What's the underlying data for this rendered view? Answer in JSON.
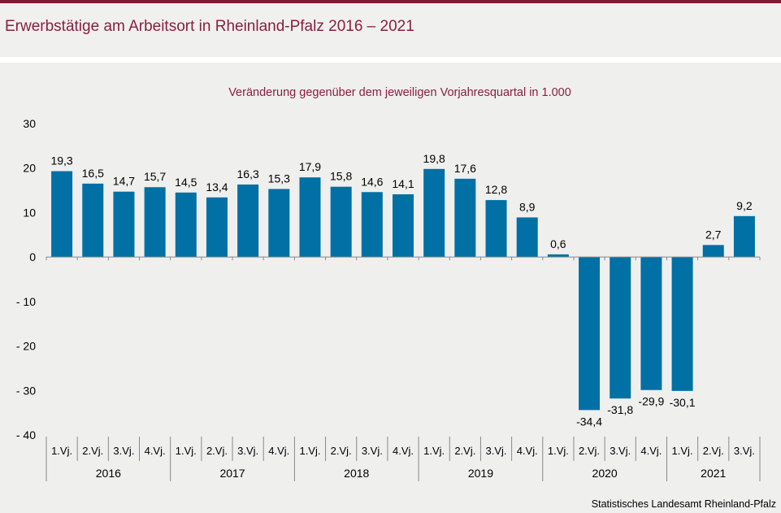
{
  "header": {
    "title": "Erwerbstätige am Arbeitsort in Rheinland-Pfalz 2016 – 2021"
  },
  "colors": {
    "accent": "#7b1c34",
    "bar": "#0070a5",
    "title": "#8a1f3c"
  },
  "chart_data": {
    "type": "bar",
    "subtitle": "Veränderung  gegenüber  dem jeweiligen  Vorjahresquartal   in 1.000",
    "ylim": [
      -40,
      30
    ],
    "yticks": [
      {
        "value": 30,
        "label": "30"
      },
      {
        "value": 20,
        "label": "20"
      },
      {
        "value": 10,
        "label": "10"
      },
      {
        "value": 0,
        "label": "0"
      },
      {
        "value": -10,
        "label": "- 10"
      },
      {
        "value": -20,
        "label": "- 20"
      },
      {
        "value": -30,
        "label": "- 30"
      },
      {
        "value": -40,
        "label": "- 40"
      }
    ],
    "categories": [
      "1.Vj.",
      "2.Vj.",
      "3.Vj.",
      "4.Vj.",
      "1.Vj.",
      "2.Vj.",
      "3.Vj.",
      "4.Vj.",
      "1.Vj.",
      "2.Vj.",
      "3.Vj.",
      "4.Vj.",
      "1.Vj.",
      "2.Vj.",
      "3.Vj.",
      "4.Vj.",
      "1.Vj.",
      "2.Vj.",
      "3.Vj.",
      "4.Vj.",
      "1.Vj.",
      "2.Vj.",
      "3.Vj."
    ],
    "values": [
      19.3,
      16.5,
      14.7,
      15.7,
      14.5,
      13.4,
      16.3,
      15.3,
      17.9,
      15.8,
      14.6,
      14.1,
      19.8,
      17.6,
      12.8,
      8.9,
      0.6,
      -34.4,
      -31.8,
      -29.9,
      -30.1,
      2.7,
      9.2
    ],
    "value_labels": [
      "19,3",
      "16,5",
      "14,7",
      "15,7",
      "14,5",
      "13,4",
      "16,3",
      "15,3",
      "17,9",
      "15,8",
      "14,6",
      "14,1",
      "19,8",
      "17,6",
      "12,8",
      "8,9",
      "0,6",
      "-34,4",
      "-31,8",
      "-29,9",
      "-30,1",
      "2,7",
      "9,2"
    ],
    "groups": [
      {
        "label": "2016",
        "count": 4
      },
      {
        "label": "2017",
        "count": 4
      },
      {
        "label": "2018",
        "count": 4
      },
      {
        "label": "2019",
        "count": 4
      },
      {
        "label": "2020",
        "count": 4
      },
      {
        "label": "2021",
        "count": 3
      }
    ],
    "grid": false,
    "legend": "none"
  },
  "footer": {
    "source": "Statistisches Landesamt  Rheinland-Pfalz"
  }
}
